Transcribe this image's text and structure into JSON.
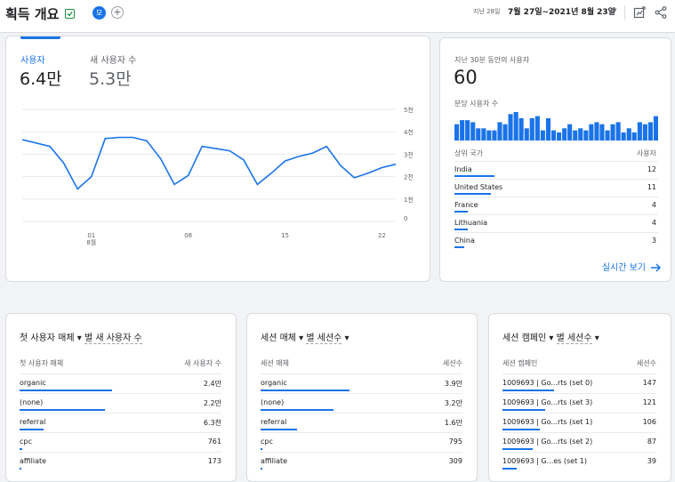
{
  "header": {
    "title": "획득 개요",
    "avatar_letter": "모",
    "date_label": "지난 28일",
    "date_range": "7월 27일~2021년 8월 23일"
  },
  "overview": {
    "metric1_label": "사용자",
    "metric1_value": "6.4만",
    "metric2_label": "새 사용자 수",
    "metric2_value": "5.3만",
    "y_ticks": [
      "5천",
      "4천",
      "3천",
      "2천",
      "1천",
      "0"
    ],
    "x_ticks": [
      "01",
      "08",
      "15",
      "22"
    ],
    "x_month": "8월"
  },
  "chart_data": {
    "type": "line",
    "x": [
      "7/27",
      "7/28",
      "7/29",
      "7/30",
      "7/31",
      "8/1",
      "8/2",
      "8/3",
      "8/4",
      "8/5",
      "8/6",
      "8/7",
      "8/8",
      "8/9",
      "8/10",
      "8/11",
      "8/12",
      "8/13",
      "8/14",
      "8/15",
      "8/16",
      "8/17",
      "8/18",
      "8/19",
      "8/20",
      "8/21",
      "8/22",
      "8/23"
    ],
    "series": [
      {
        "values": [
          3.65,
          3.5,
          3.35,
          2.6,
          1.45,
          2.0,
          3.7,
          3.75,
          3.75,
          3.6,
          2.8,
          1.65,
          2.05,
          3.35,
          3.25,
          3.15,
          2.75,
          1.65,
          2.15,
          2.7,
          2.9,
          3.05,
          3.35,
          2.5,
          1.95,
          2.15,
          2.4,
          2.55
        ]
      }
    ],
    "y_ticks": [
      "5천",
      "4천",
      "3천",
      "2천",
      "1천",
      "0"
    ],
    "ylim": [
      0,
      5
    ]
  },
  "realtime": {
    "title": "지난 30분 동안의 사용자",
    "value": "60",
    "per_minute_label": "분당 사용자 수",
    "per_minute": [
      8,
      10,
      10,
      9,
      6,
      6,
      5,
      5,
      9,
      8,
      13,
      14,
      11,
      6,
      11,
      12,
      5,
      11,
      5,
      4,
      6,
      8,
      5,
      6,
      5,
      8,
      9,
      8,
      5,
      8,
      9,
      4,
      6,
      4,
      9,
      8,
      9,
      12
    ],
    "country_head": "상위 국가",
    "users_head": "사용자",
    "countries": [
      {
        "name": "India",
        "value": "12",
        "frac": 1.0
      },
      {
        "name": "United States",
        "value": "11",
        "frac": 0.92
      },
      {
        "name": "France",
        "value": "4",
        "frac": 0.33
      },
      {
        "name": "Lithuania",
        "value": "4",
        "frac": 0.33
      },
      {
        "name": "China",
        "value": "3",
        "frac": 0.25
      }
    ],
    "link": "실시간 보기"
  },
  "table1": {
    "title_a": "첫 사용자 매체",
    "title_b": "별 새 사용자 수",
    "col1": "첫 사용자 매체",
    "col2": "새 사용자 수",
    "rows": [
      {
        "label": "organic",
        "value": "2.4만",
        "frac": 1.0
      },
      {
        "label": "(none)",
        "value": "2.2만",
        "frac": 0.92
      },
      {
        "label": "referral",
        "value": "6.3천",
        "frac": 0.26
      },
      {
        "label": "cpc",
        "value": "761",
        "frac": 0.03
      },
      {
        "label": "affiliate",
        "value": "173",
        "frac": 0.01
      }
    ]
  },
  "table2": {
    "title_a": "세션 매체",
    "title_b": "별 세션수",
    "col1": "세션 매체",
    "col2": "세션수",
    "rows": [
      {
        "label": "organic",
        "value": "3.9만",
        "frac": 1.0
      },
      {
        "label": "(none)",
        "value": "3.2만",
        "frac": 0.82
      },
      {
        "label": "referral",
        "value": "1.6만",
        "frac": 0.41
      },
      {
        "label": "cpc",
        "value": "795",
        "frac": 0.02
      },
      {
        "label": "affiliate",
        "value": "309",
        "frac": 0.01
      }
    ]
  },
  "table3": {
    "title_a": "세션 캠페인",
    "title_b": "별 세션수",
    "col1": "세션 캠페인",
    "col2": "세션수",
    "rows": [
      {
        "label": "1009693 | Go...rts (set 0)",
        "value": "147",
        "frac": 1.0
      },
      {
        "label": "1009693 | Go...rts (set 3)",
        "value": "121",
        "frac": 0.82
      },
      {
        "label": "1009693 | Go...rts (set 1)",
        "value": "106",
        "frac": 0.72
      },
      {
        "label": "1009693 | Go...rts (set 2)",
        "value": "87",
        "frac": 0.59
      },
      {
        "label": "1009693 | G...es (set 1)",
        "value": "39",
        "frac": 0.27
      }
    ]
  }
}
